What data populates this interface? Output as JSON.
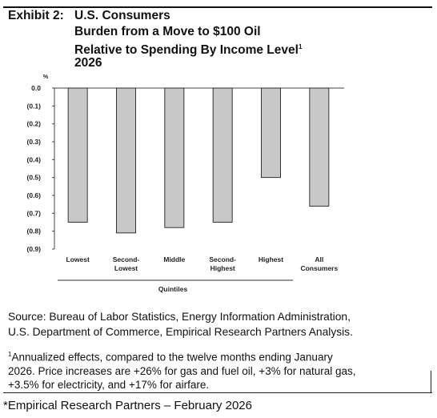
{
  "exhibit_label": "Exhibit 2:",
  "title_lines": [
    "U.S. Consumers",
    "Burden from a Move to $100 Oil",
    "Relative to Spending By Income Level",
    "2026"
  ],
  "title_superscript": "1",
  "chart_data": {
    "type": "bar",
    "categories": [
      [
        "Lowest"
      ],
      [
        "Second-",
        "Lowest"
      ],
      [
        "Middle"
      ],
      [
        "Second-",
        "Highest"
      ],
      [
        "Highest"
      ],
      [
        "All",
        "Consumers"
      ]
    ],
    "values": [
      -0.75,
      -0.81,
      -0.78,
      -0.75,
      -0.5,
      -0.66
    ],
    "y_unit_label": "%",
    "ylim": [
      -0.9,
      0.0
    ],
    "yticks": [
      "0.0",
      "(0.1)",
      "(0.2)",
      "(0.3)",
      "(0.4)",
      "(0.5)",
      "(0.6)",
      "(0.7)",
      "(0.8)",
      "(0.9)"
    ],
    "group_label": "Quintiles",
    "bar_color": "#c8c8c8",
    "grid": false
  },
  "source_lines": [
    "Source: Bureau of Labor Statistics, Energy Information Administration,",
    "U.S. Department of Commerce, Empirical Research Partners Analysis."
  ],
  "footnote_marker": "1",
  "footnote_lines": [
    "Annualized effects, compared to the twelve months ending January",
    "2026. Price increases are +26% for gas and fuel oil, +3% for natural gas,",
    "+3.5% for electricity, and +17% for airfare."
  ],
  "credit": "*Empirical Research Partners – February 2026"
}
